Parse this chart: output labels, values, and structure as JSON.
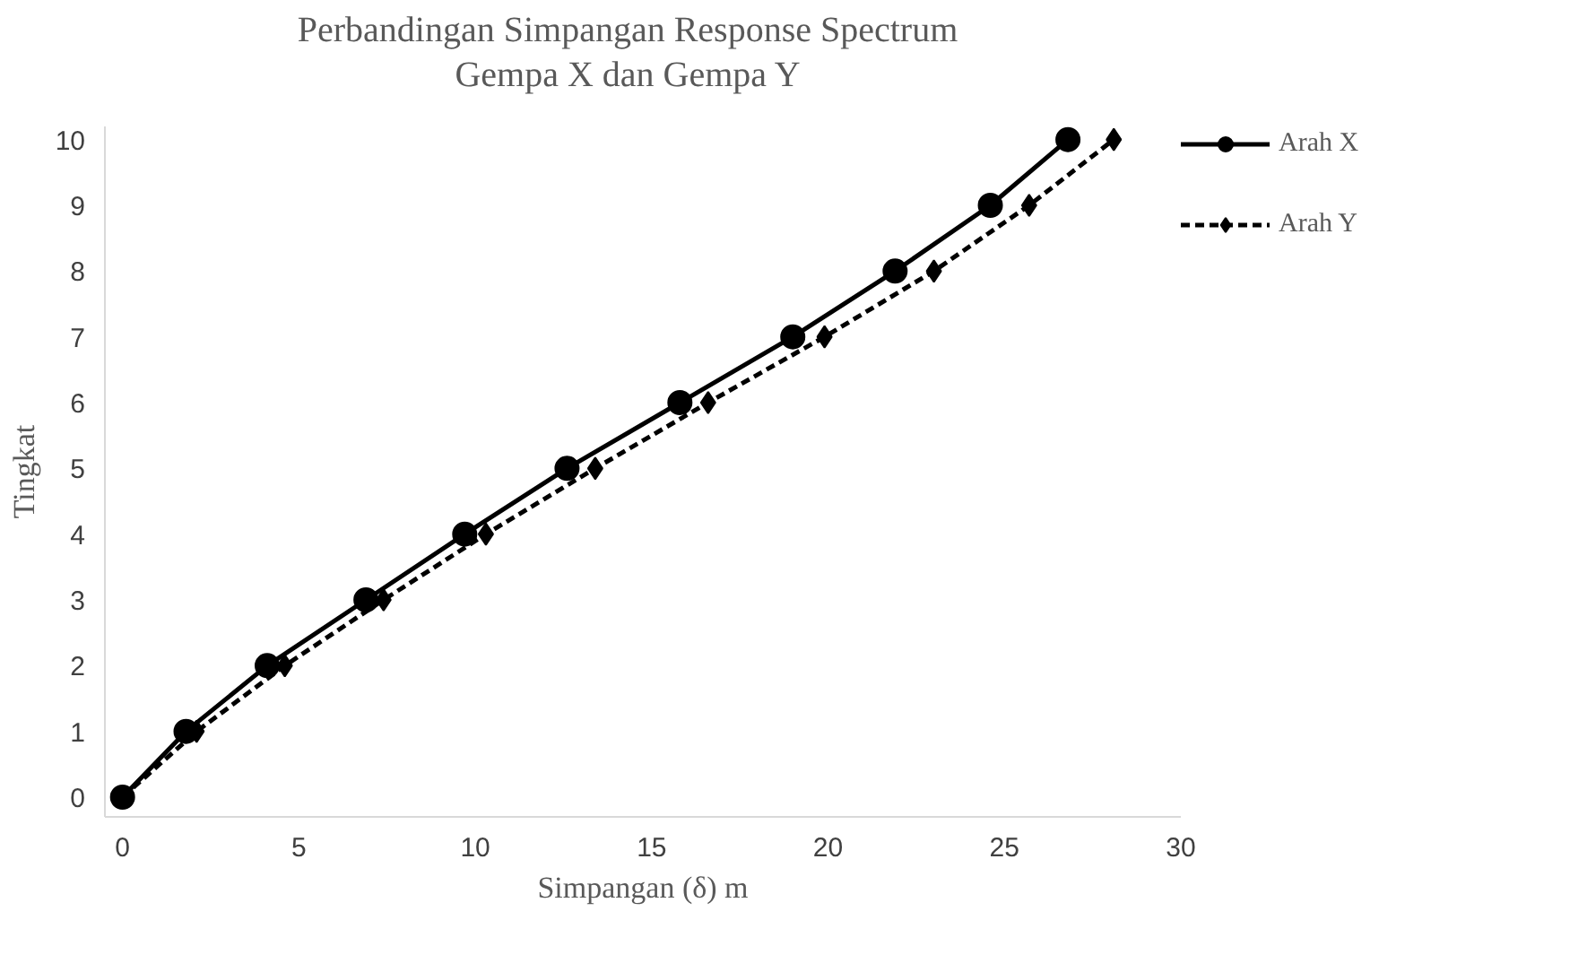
{
  "chart_data": {
    "type": "line",
    "title": "Perbandingan Simpangan Response Spectrum\nGempa X dan Gempa Y",
    "xlabel": "Simpangan (δ) m",
    "ylabel": "Tingkat",
    "xlim": [
      -0.5,
      30
    ],
    "ylim": [
      -0.3,
      10.2
    ],
    "xticks": [
      0,
      5,
      10,
      15,
      20,
      25,
      30
    ],
    "yticks": [
      0,
      1,
      2,
      3,
      4,
      5,
      6,
      7,
      8,
      9,
      10
    ],
    "grid": false,
    "legend": "right",
    "series": [
      {
        "name": "Arah X",
        "color": "#000000",
        "marker": "circle",
        "line_style": "solid",
        "x": [
          0,
          1.8,
          4.1,
          6.9,
          9.7,
          12.6,
          15.8,
          19.0,
          21.9,
          24.6,
          26.8
        ],
        "values": [
          0,
          1,
          2,
          3,
          4,
          5,
          6,
          7,
          8,
          9,
          10
        ]
      },
      {
        "name": "Arah Y",
        "color": "#000000",
        "marker": "diamond",
        "line_style": "dashed",
        "x": [
          0,
          2.1,
          4.6,
          7.4,
          10.3,
          13.4,
          16.6,
          19.9,
          23.0,
          25.7,
          28.1
        ],
        "values": [
          0,
          1,
          2,
          3,
          4,
          5,
          6,
          7,
          8,
          9,
          10
        ]
      }
    ]
  }
}
